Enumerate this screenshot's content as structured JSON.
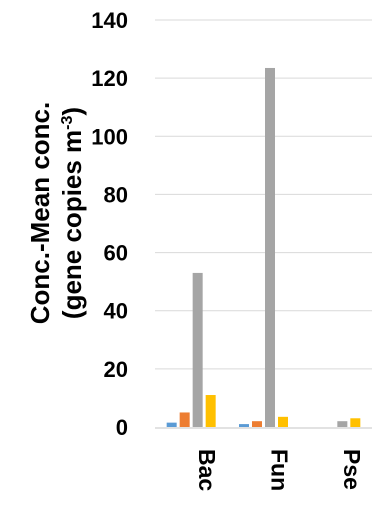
{
  "chart_data": {
    "type": "bar",
    "title": "",
    "xlabel": "",
    "ylabel": {
      "line1": "Conc.-Mean conc.",
      "line2_pre": "(gene copies m",
      "line2_sup": "-3",
      "line2_post": ")"
    },
    "ylim": [
      0,
      140
    ],
    "yticks": [
      0,
      20,
      40,
      60,
      80,
      100,
      120,
      140
    ],
    "grid": true,
    "legend": "none",
    "categories": [
      "Bac",
      "Fun",
      "Pse"
    ],
    "series": [
      {
        "color": "#5b9bd5",
        "values": [
          1.5,
          1.0,
          0.0
        ]
      },
      {
        "color": "#ed7d31",
        "values": [
          5.0,
          2.0,
          0.0
        ]
      },
      {
        "color": "#a5a5a5",
        "values": [
          53.0,
          123.5,
          2.0
        ]
      },
      {
        "color": "#ffc000",
        "values": [
          11.0,
          3.5,
          3.0
        ]
      }
    ]
  }
}
